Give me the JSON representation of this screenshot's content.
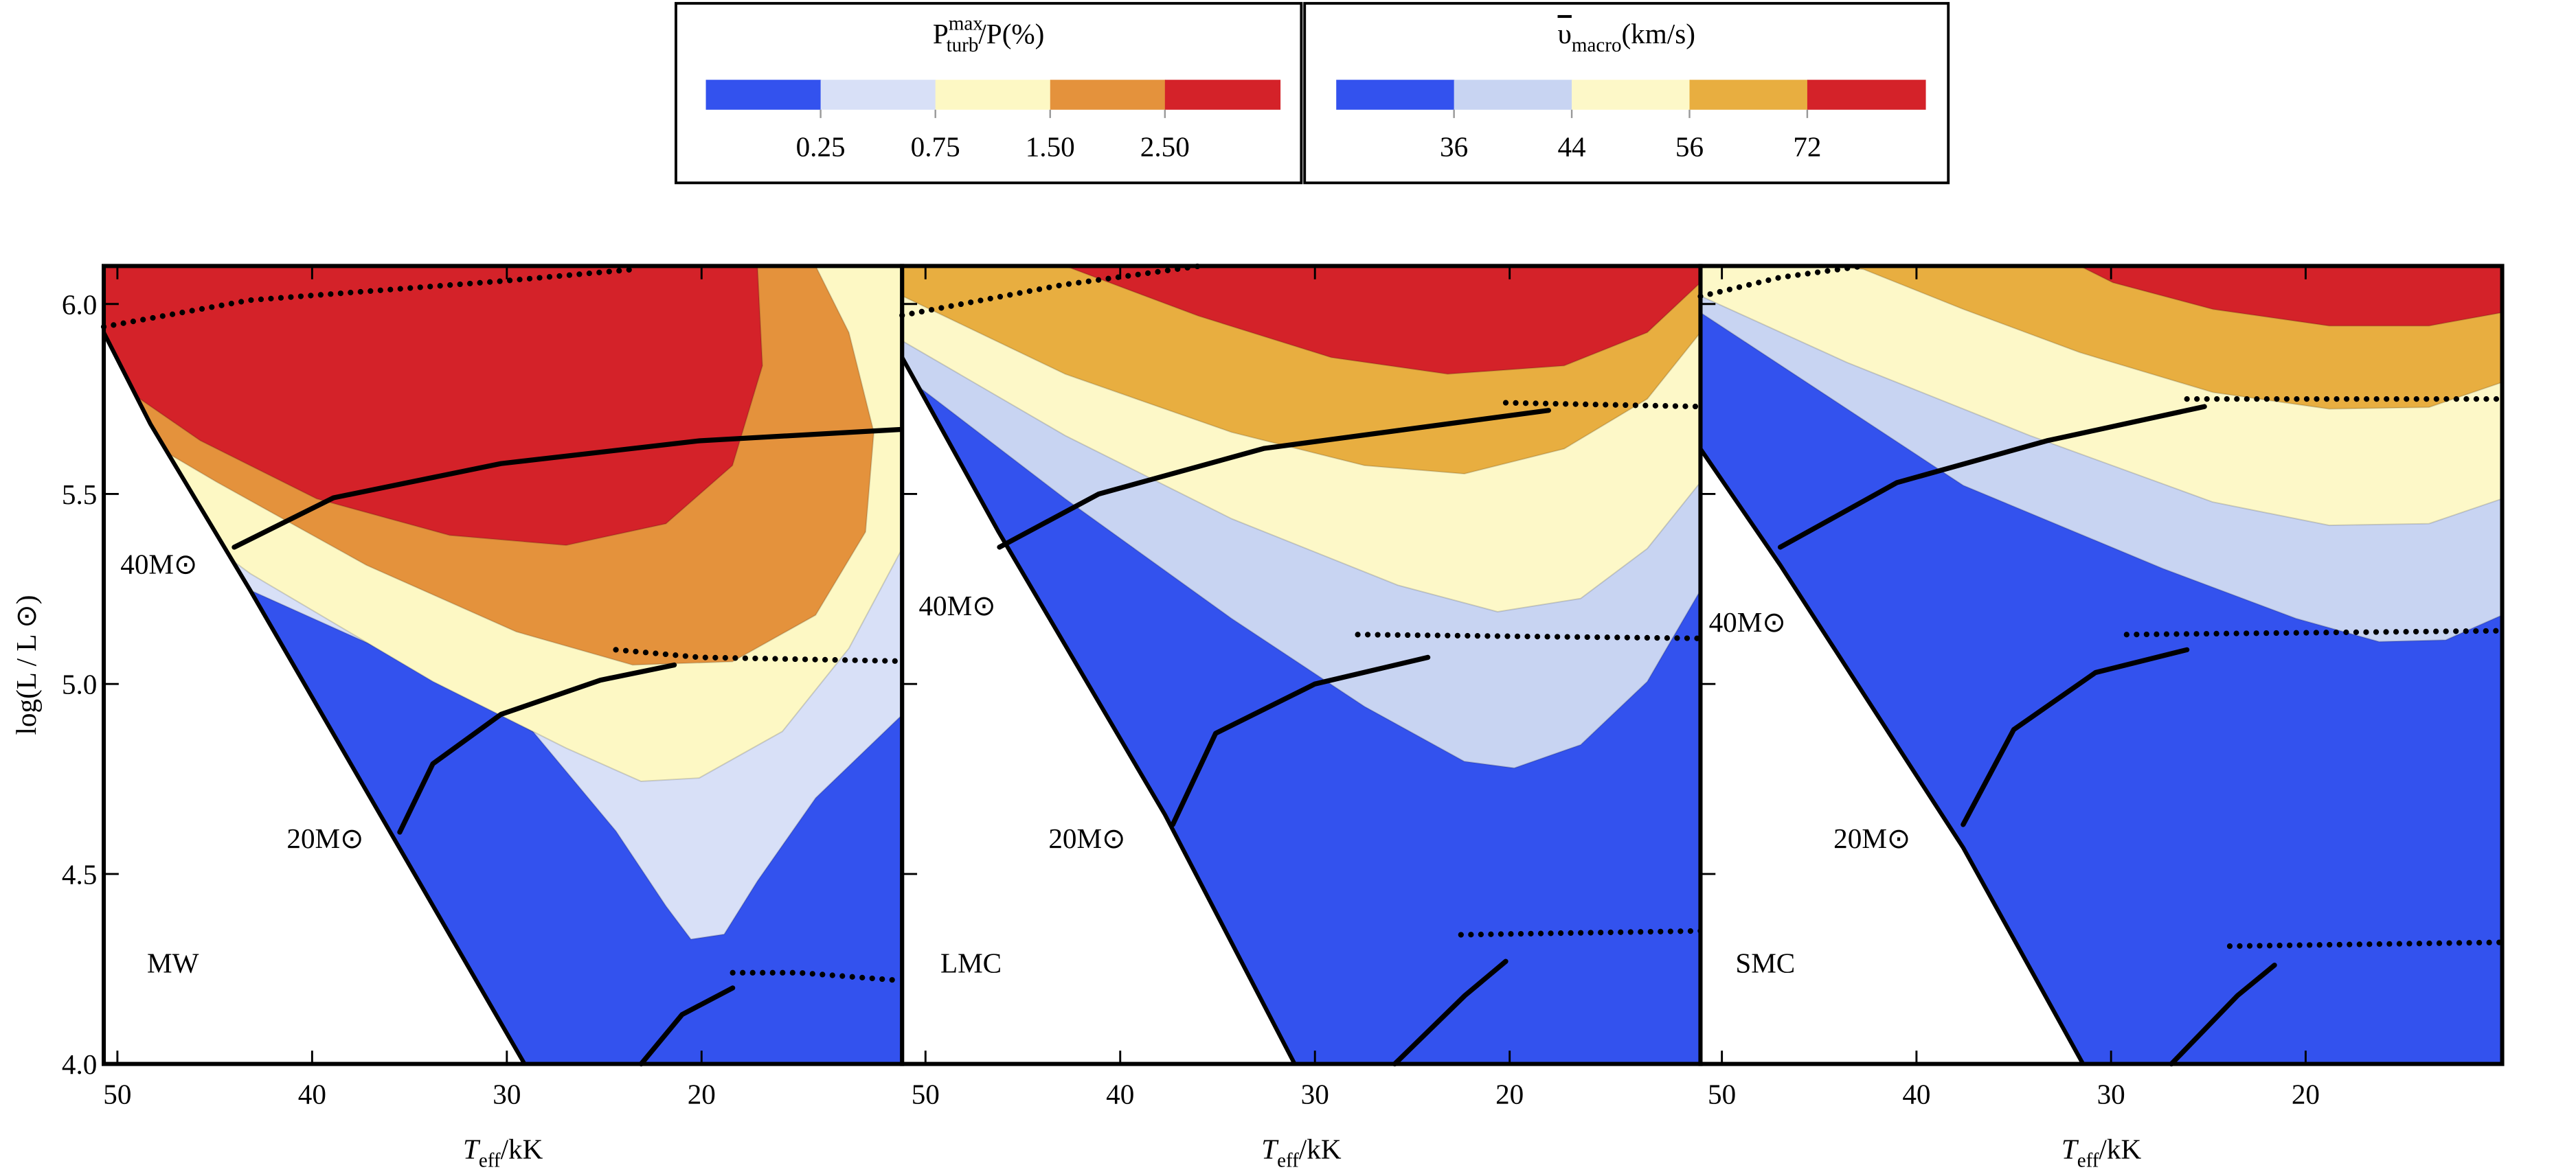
{
  "colorbars": [
    {
      "title": {
        "main": "P",
        "sup": "max",
        "sub": "turb",
        "rest": "/P(%)"
      },
      "colors": [
        "#3352ee",
        "#d8e0f7",
        "#fdf8c4",
        "#e4923c",
        "#d42229"
      ],
      "ticks": [
        0.25,
        0.75,
        {
          "value": 1.5,
          "label": "1.50"
        },
        {
          "value": 2.5,
          "label": "2.50"
        }
      ]
    },
    {
      "title": {
        "main": "υ",
        "sub": "macro",
        "rest": "(km/s)"
      },
      "colors": [
        "#3352ee",
        "#c8d4f2",
        "#fdf8c8",
        "#e8ae40",
        "#d42229"
      ],
      "ticks": [
        36,
        44,
        56,
        72
      ]
    }
  ],
  "chart_data": [
    {
      "type": "contour",
      "ylabel": "log(L / L ⊙)",
      "xlabel": {
        "main": "T",
        "sub": "eff",
        "rest": "/kK"
      },
      "xlim": [
        50.7,
        9.7
      ],
      "xticks": [
        50,
        40,
        30,
        20
      ],
      "ylim": [
        4.0,
        6.1
      ],
      "yticks": [
        {
          "value": 4.0,
          "label": "4.0"
        },
        4.5,
        {
          "value": 5.0,
          "label": "5.0"
        },
        5.5,
        {
          "value": 6.0,
          "label": "6.0"
        }
      ],
      "annotations": [
        "40M⊙",
        "20M⊙",
        "MW"
      ],
      "series": [
        {
          "linestyle": "dotted",
          "x": [
            50.7,
            43.2,
            30.3,
            23.7
          ],
          "y": [
            5.94,
            6.01,
            6.06,
            6.09
          ]
        },
        {
          "linestyle": "solid",
          "x": [
            44.0,
            38.9,
            30.3,
            20.1,
            9.7
          ],
          "y": [
            5.36,
            5.49,
            5.58,
            5.64,
            5.67
          ]
        },
        {
          "linestyle": "solid",
          "x": [
            35.5,
            33.8,
            30.3,
            25.2,
            21.4
          ],
          "y": [
            4.61,
            4.79,
            4.92,
            5.01,
            5.05
          ]
        },
        {
          "linestyle": "dotted",
          "x": [
            24.4,
            20.1,
            9.7
          ],
          "y": [
            5.09,
            5.07,
            5.06
          ]
        },
        {
          "linestyle": "solid",
          "x": [
            23.1,
            21.0,
            18.4
          ],
          "y": [
            4.0,
            4.13,
            4.2
          ]
        },
        {
          "linestyle": "dotted",
          "x": [
            18.4,
            15.0,
            9.9
          ],
          "y": [
            4.24,
            4.24,
            4.22
          ]
        }
      ]
    },
    {
      "type": "contour",
      "xlabel": {
        "main": "T",
        "sub": "eff",
        "rest": "/kK"
      },
      "xlim": [
        51.2,
        10.2
      ],
      "xticks": [
        50,
        40,
        30,
        20
      ],
      "annotations": [
        "40M⊙",
        "20M⊙",
        "LMC"
      ],
      "series": [
        {
          "linestyle": "dotted",
          "x": [
            51.2,
            43.0,
            35.9
          ],
          "y": [
            5.97,
            6.05,
            6.1
          ]
        },
        {
          "linestyle": "solid",
          "x": [
            46.2,
            41.1,
            32.6,
            18.0
          ],
          "y": [
            5.36,
            5.5,
            5.62,
            5.72
          ]
        },
        {
          "linestyle": "dotted",
          "x": [
            20.2,
            10.2
          ],
          "y": [
            5.74,
            5.73
          ]
        },
        {
          "linestyle": "solid",
          "x": [
            37.3,
            35.1,
            30.0,
            24.2
          ],
          "y": [
            4.63,
            4.87,
            5.0,
            5.07
          ]
        },
        {
          "linestyle": "dotted",
          "x": [
            27.8,
            10.2
          ],
          "y": [
            5.13,
            5.12
          ]
        },
        {
          "linestyle": "solid",
          "x": [
            25.9,
            22.3,
            20.2
          ],
          "y": [
            4.0,
            4.18,
            4.27
          ]
        },
        {
          "linestyle": "dotted",
          "x": [
            22.5,
            10.2
          ],
          "y": [
            4.34,
            4.35
          ]
        }
      ]
    },
    {
      "type": "contour",
      "xlabel": {
        "main": "T",
        "sub": "eff",
        "rest": "/kK"
      },
      "xlim": [
        51.1,
        9.9
      ],
      "xticks": [
        50,
        40,
        30,
        20
      ],
      "annotations": [
        "40M⊙",
        "20M⊙",
        "SMC"
      ],
      "series": [
        {
          "linestyle": "dotted",
          "x": [
            51.1,
            47.0,
            42.7
          ],
          "y": [
            6.02,
            6.07,
            6.1
          ]
        },
        {
          "linestyle": "solid",
          "x": [
            47.0,
            41.0,
            33.3,
            25.2
          ],
          "y": [
            5.36,
            5.53,
            5.64,
            5.73
          ]
        },
        {
          "linestyle": "dotted",
          "x": [
            26.1,
            9.9
          ],
          "y": [
            5.75,
            5.75
          ]
        },
        {
          "linestyle": "solid",
          "x": [
            37.6,
            35.0,
            30.8,
            26.1
          ],
          "y": [
            4.63,
            4.88,
            5.03,
            5.09
          ]
        },
        {
          "linestyle": "dotted",
          "x": [
            29.2,
            9.9
          ],
          "y": [
            5.13,
            5.14
          ]
        },
        {
          "linestyle": "solid",
          "x": [
            26.9,
            23.5,
            21.6
          ],
          "y": [
            4.0,
            4.18,
            4.26
          ]
        },
        {
          "linestyle": "dotted",
          "x": [
            23.9,
            9.9
          ],
          "y": [
            4.31,
            4.32
          ]
        }
      ]
    }
  ]
}
